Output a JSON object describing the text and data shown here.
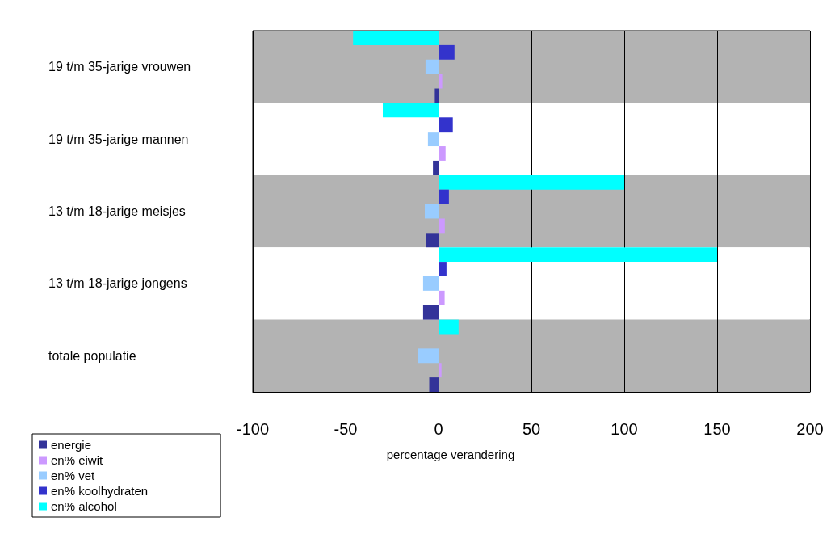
{
  "chart_data": {
    "type": "bar",
    "orientation": "horizontal",
    "xlabel": "percentage verandering",
    "categories": [
      "19 t/m 35-jarige vrouwen",
      "19 t/m 35-jarige mannen",
      "13 t/m 18-jarige meisjes",
      "13 t/m 18-jarige jongens",
      "totale populatie"
    ],
    "series": [
      {
        "name": "energie",
        "color": "#333399",
        "values": [
          -2,
          -3,
          -6.7,
          -8.3,
          -5
        ]
      },
      {
        "name": "en% eiwit",
        "color": "#cc99ff",
        "values": [
          2,
          3.8,
          3.4,
          3.3,
          1.6
        ]
      },
      {
        "name": "en% vet",
        "color": "#99ccff",
        "values": [
          -7,
          -5.7,
          -7.4,
          -8.3,
          -11
        ]
      },
      {
        "name": "en% koolhydraten",
        "color": "#3333cc",
        "values": [
          8.6,
          7.7,
          5.6,
          4.3,
          0
        ]
      },
      {
        "name": "en% alcohol",
        "color": "#00ffff",
        "values": [
          -46,
          -30,
          100,
          150,
          10.8
        ]
      }
    ],
    "xlim": [
      -100,
      200
    ],
    "xticks": [
      -100,
      -50,
      0,
      50,
      100,
      150,
      200
    ],
    "grid": "x",
    "legend": "bottom left"
  }
}
